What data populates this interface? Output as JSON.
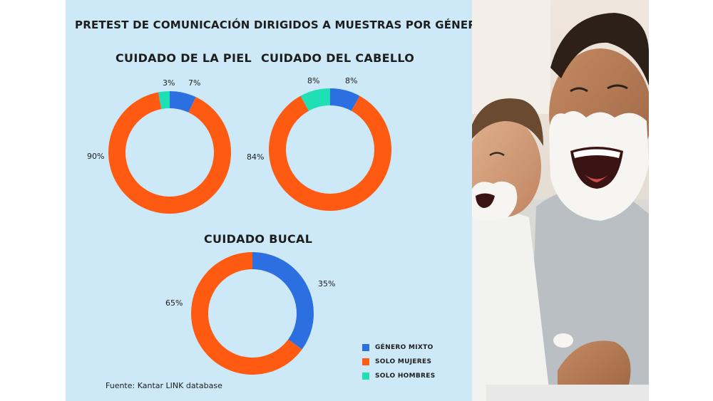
{
  "title": "PRETEST DE COMUNICACIÓN DIRIGIDOS A MUESTRAS POR GÉNERO",
  "source": "Fuente: Kantar LINK database",
  "colors": {
    "genero_mixto": "#2b6fe0",
    "solo_mujeres": "#ff5a12",
    "solo_hombres": "#1fe0b4",
    "panel_bg": "#cde9f7"
  },
  "legend": [
    {
      "label": "GÉNERO MIXTO",
      "color": "#2b6fe0"
    },
    {
      "label": "SOLO MUJERES",
      "color": "#ff5a12"
    },
    {
      "label": "SOLO HOMBRES",
      "color": "#1fe0b4"
    }
  ],
  "chart_data": [
    {
      "type": "pie",
      "title": "CUIDADO DE LA PIEL",
      "categories": [
        "GÉNERO MIXTO",
        "SOLO MUJERES",
        "SOLO HOMBRES"
      ],
      "values": [
        7,
        90,
        3
      ],
      "labels": [
        "7%",
        "90%",
        "3%"
      ]
    },
    {
      "type": "pie",
      "title": "CUIDADO DEL CABELLO",
      "categories": [
        "GÉNERO MIXTO",
        "SOLO MUJERES",
        "SOLO HOMBRES"
      ],
      "values": [
        8,
        84,
        8
      ],
      "labels": [
        "8%",
        "84%",
        "8%"
      ]
    },
    {
      "type": "pie",
      "title": "CUIDADO BUCAL",
      "categories": [
        "GÉNERO MIXTO",
        "SOLO MUJERES"
      ],
      "values": [
        35,
        65
      ],
      "labels": [
        "35%",
        "65%"
      ]
    }
  ],
  "photo": {
    "icon": "father-and-son-shaving-photo"
  }
}
